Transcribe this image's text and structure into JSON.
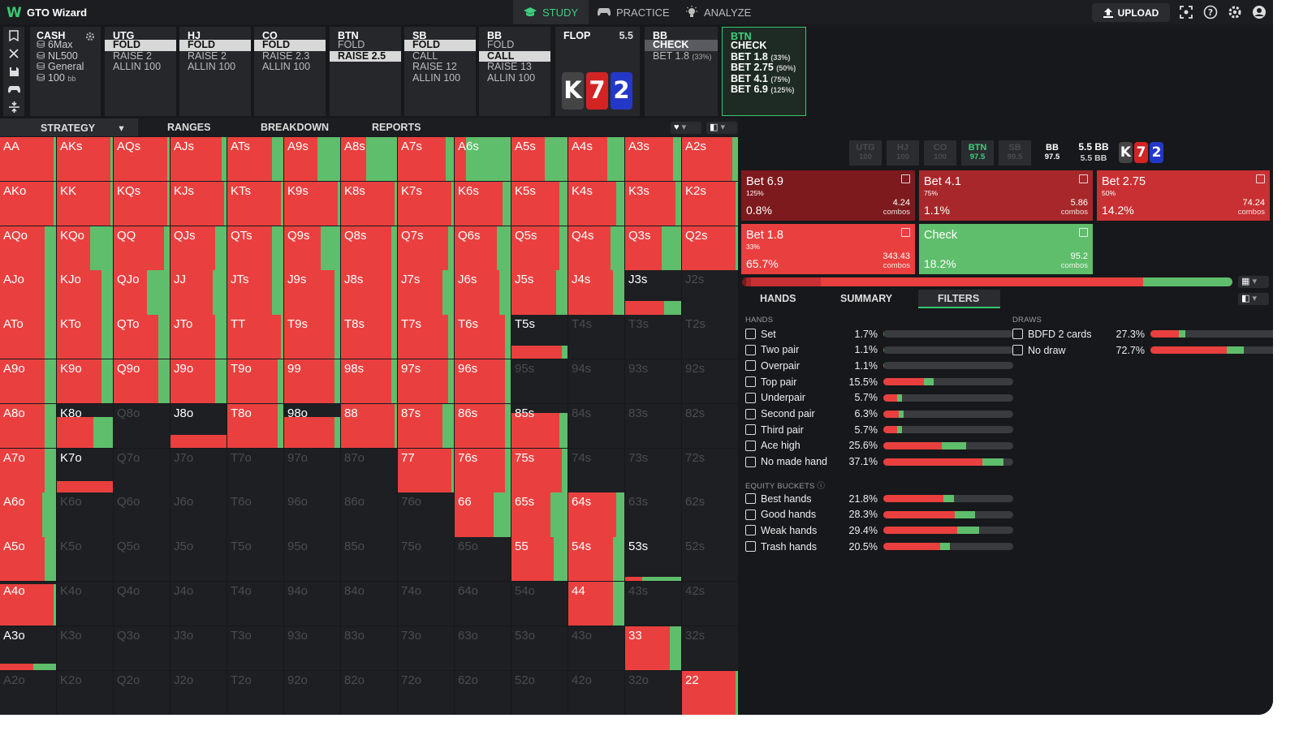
{
  "app": {
    "name": "GTO Wizard",
    "nav": [
      "STUDY",
      "PRACTICE",
      "ANALYZE"
    ],
    "upload": "UPLOAD"
  },
  "colors": {
    "raise": "#e9403f",
    "check": "#5fbe6c",
    "accent": "#39c66f",
    "bg": "#17181b"
  },
  "cash": {
    "title": "CASH",
    "items": [
      "6Max",
      "NL500",
      "General",
      "100"
    ],
    "unit": "bb"
  },
  "positions": [
    {
      "name": "UTG",
      "actions": [
        [
          "FOLD",
          "sel"
        ],
        [
          "RAISE 2",
          ""
        ],
        [
          "ALLIN 100",
          ""
        ]
      ]
    },
    {
      "name": "HJ",
      "actions": [
        [
          "FOLD",
          "sel"
        ],
        [
          "RAISE 2",
          ""
        ],
        [
          "ALLIN 100",
          ""
        ]
      ]
    },
    {
      "name": "CO",
      "actions": [
        [
          "FOLD",
          "sel"
        ],
        [
          "RAISE 2.3",
          ""
        ],
        [
          "ALLIN 100",
          ""
        ]
      ]
    },
    {
      "name": "BTN",
      "actions": [
        [
          "FOLD",
          ""
        ],
        [
          "RAISE 2.5",
          "sel"
        ]
      ]
    },
    {
      "name": "SB",
      "actions": [
        [
          "FOLD",
          "sel"
        ],
        [
          "CALL",
          ""
        ],
        [
          "RAISE 12",
          ""
        ],
        [
          "ALLIN 100",
          ""
        ]
      ]
    },
    {
      "name": "BB",
      "actions": [
        [
          "FOLD",
          ""
        ],
        [
          "CALL",
          "sel"
        ],
        [
          "RAISE 13",
          ""
        ],
        [
          "ALLIN 100",
          ""
        ]
      ]
    }
  ],
  "flop": {
    "title": "FLOP",
    "pot": "5.5",
    "cards": [
      {
        "rank": "K",
        "color": "#444"
      },
      {
        "rank": "7",
        "color": "#d32323"
      },
      {
        "rank": "2",
        "color": "#2438c8"
      }
    ]
  },
  "bb_node": {
    "name": "BB",
    "actions": [
      {
        "label": "CHECK",
        "pct": "",
        "sel": true
      },
      {
        "label": "BET 1.8",
        "pct": "(33%)",
        "sel": false
      }
    ]
  },
  "btn_node": {
    "name": "BTN",
    "actions": [
      {
        "label": "CHECK",
        "pct": ""
      },
      {
        "label": "BET 1.8",
        "pct": "(33%)"
      },
      {
        "label": "BET 2.75",
        "pct": "(50%)"
      },
      {
        "label": "BET 4.1",
        "pct": "(75%)"
      },
      {
        "label": "BET 6.9",
        "pct": "(125%)"
      }
    ]
  },
  "left_tabs": [
    "STRATEGY",
    "RANGES",
    "BREAKDOWN",
    "REPORTS"
  ],
  "players": [
    {
      "n": "UTG",
      "s": "100",
      "a": false
    },
    {
      "n": "HJ",
      "s": "100",
      "a": false
    },
    {
      "n": "CO",
      "s": "100",
      "a": false
    },
    {
      "n": "BTN",
      "s": "97.5",
      "a": true
    },
    {
      "n": "SB",
      "s": "99.5",
      "a": false
    },
    {
      "n": "BB",
      "s": "97.5",
      "a": "w"
    }
  ],
  "pot": {
    "top": "5.5 BB",
    "bottom": "5.5 BB"
  },
  "action_boxes": [
    {
      "name": "Bet 6.9",
      "size": "125%",
      "combos": "4.24",
      "pct": "0.8%",
      "color": "#7d1a1d"
    },
    {
      "name": "Bet 4.1",
      "size": "75%",
      "combos": "5.86",
      "pct": "1.1%",
      "color": "#a8272a"
    },
    {
      "name": "Bet 2.75",
      "size": "50%",
      "combos": "74.24",
      "pct": "14.2%",
      "color": "#c93033"
    },
    {
      "name": "Bet 1.8",
      "size": "33%",
      "combos": "343.43",
      "pct": "65.7%",
      "color": "#e9403f"
    },
    {
      "name": "Check",
      "size": "",
      "combos": "95.2",
      "pct": "18.2%",
      "color": "#5fbe6c"
    }
  ],
  "combos_label": "combos",
  "overall": [
    {
      "c": "#7d1a1d",
      "v": 0.8
    },
    {
      "c": "#a8272a",
      "v": 1.1
    },
    {
      "c": "#c93033",
      "v": 14.2
    },
    {
      "c": "#e9403f",
      "v": 65.7
    },
    {
      "c": "#5fbe6c",
      "v": 18.2
    }
  ],
  "right_tabs": [
    "HANDS",
    "SUMMARY",
    "FILTERS"
  ],
  "filters": {
    "hands_title": "HANDS",
    "hands": [
      {
        "name": "Set",
        "pct": "1.7%",
        "v": 1.7,
        "r": 0.1,
        "g": 0
      },
      {
        "name": "Two pair",
        "pct": "1.1%",
        "v": 1.1,
        "r": 0.1,
        "g": 0
      },
      {
        "name": "Overpair",
        "pct": "1.1%",
        "v": 1.1,
        "r": 0.1,
        "g": 0
      },
      {
        "name": "Top pair",
        "pct": "15.5%",
        "v": 15.5,
        "r": 0.8,
        "g": 0.2
      },
      {
        "name": "Underpair",
        "pct": "5.7%",
        "v": 5.7,
        "r": 0.75,
        "g": 0.25
      },
      {
        "name": "Second pair",
        "pct": "6.3%",
        "v": 6.3,
        "r": 0.75,
        "g": 0.25
      },
      {
        "name": "Third pair",
        "pct": "5.7%",
        "v": 5.7,
        "r": 0.75,
        "g": 0.25
      },
      {
        "name": "Ace high",
        "pct": "25.6%",
        "v": 25.6,
        "r": 0.7,
        "g": 0.3
      },
      {
        "name": "No made hand",
        "pct": "37.1%",
        "v": 37.1,
        "r": 0.82,
        "g": 0.18
      }
    ],
    "equity_title": "EQUITY BUCKETS",
    "equity": [
      {
        "name": "Best hands",
        "pct": "21.8%",
        "v": 21.8,
        "r": 0.85,
        "g": 0.15
      },
      {
        "name": "Good hands",
        "pct": "28.3%",
        "v": 28.3,
        "r": 0.78,
        "g": 0.22
      },
      {
        "name": "Weak hands",
        "pct": "29.4%",
        "v": 29.4,
        "r": 0.77,
        "g": 0.23
      },
      {
        "name": "Trash hands",
        "pct": "20.5%",
        "v": 20.5,
        "r": 0.85,
        "g": 0.15
      }
    ],
    "draws_title": "DRAWS",
    "draws": [
      {
        "name": "BDFD 2 cards",
        "pct": "27.3%",
        "v": 27.3,
        "r": 0.8,
        "g": 0.2
      },
      {
        "name": "No draw",
        "pct": "72.7%",
        "v": 72.7,
        "r": 0.82,
        "g": 0.18
      }
    ]
  },
  "grid": [
    [
      "AA:0.95:0.05",
      "AKs:0.95:0.05",
      "AQs:0.95:0.05",
      "AJs:0.92:0.08",
      "ATs:0.8:0.2",
      "A9s:0.6:0.4",
      "A8s:0.45:0.55",
      "A7s:0.85:0.15",
      "A6s:0.2:0.8",
      "A5s:0.6:0.4",
      "A4s:0.7:0.3",
      "A3s:0.85:0.15",
      "A2s:0.9:0.1"
    ],
    [
      "AKo:0.95:0.05",
      "KK:0.95:0.05",
      "KQs:0.95:0.05",
      "KJs:0.95:0.05",
      "KTs:0.95:0.05",
      "K9s:0.95:0.05",
      "K8s:0.95:0.05",
      "K7s:0.95:0.05",
      "K6s:0.85:0.15",
      "K5s:0.85:0.15",
      "K4s:0.85:0.15",
      "K3s:0.9:0.1",
      "K2s:0.95:0.05"
    ],
    [
      "AQo:0.8:0.2",
      "KQo:0.6:0.4",
      "QQ:0.9:0.1",
      "QJs:0.8:0.2",
      "QTs:0.8:0.2",
      "Q9s:0.65:0.35",
      "Q8s:0.9:0.1",
      "Q7s:0.9:0.1",
      "Q6s:0.75:0.25",
      "Q5s:0.85:0.15",
      "Q4s:0.75:0.25",
      "Q3s:0.65:0.35",
      "Q2s:0.95:0.05"
    ],
    [
      "AJo:0.8:0.2",
      "KJo:0.8:0.2",
      "QJo:0.6:0.4",
      "JJ:0.75:0.25",
      "JTs:0.8:0.2",
      "J9s:0.9:0.1",
      "J8s:0.9:0.1",
      "J7s:0.8:0.2",
      "J6s:0.8:0.2",
      "J5s:0.8:0.2",
      "J4s:0.8:0.2",
      "J3s:0.7:0.3:0.3",
      "J2s:0:0:0"
    ],
    [
      "ATo:0.8:0.2",
      "KTo:0.8:0.2",
      "QTo:0.8:0.2",
      "JTo:0.8:0.2",
      "TT:0.95:0.05",
      "T9s:0.9:0.1",
      "T8s:0.9:0.1",
      "T7s:0.9:0.1",
      "T6s:0.9:0.1",
      "T5s:0.9:0.1:0.3",
      "T4s:0:0:0",
      "T3s:0:0:0",
      "T2s:0:0:0"
    ],
    [
      "A9o:0.8:0.2",
      "K9o:0.8:0.2",
      "Q9o:0.8:0.2",
      "J9o:0.8:0.2",
      "T9o:0.9:0.1",
      "99:0.9:0.1",
      "98s:0.9:0.1",
      "97s:0.9:0.1",
      "96s:0.9:0.1",
      "95s:0:0:0",
      "94s:0:0:0",
      "93s:0:0:0",
      "92s:0:0:0"
    ],
    [
      "A8o:0.8:0.2",
      "K8o:0.65:0.35:0.7",
      "Q8o:0:0:0",
      "J8o:1:0:0.3",
      "T8o:0.9:0.1",
      "98o:0.9:0.1:0.7",
      "88:0.95:0.05",
      "87s:0.8:0.2",
      "86s:0.9:0.1",
      "85s:0.85:0.15:0.8",
      "84s:0:0:0",
      "83s:0:0:0",
      "82s:0:0:0"
    ],
    [
      "A7o:0.8:0.2",
      "K7o:1:0:0.25",
      "Q7o:0:0:0",
      "J7o:0:0:0",
      "T7o:0:0:0",
      "97o:0:0:0",
      "87o:0:0:0",
      "77:0.95:0.05",
      "76s:0.9:0.1",
      "75s:0.9:0.1",
      "74s:0:0:0",
      "73s:0:0:0",
      "72s:0:0:0"
    ],
    [
      "A6o:0.75:0.25",
      "K6o:0:0:0",
      "Q6o:0:0:0",
      "J6o:0:0:0",
      "T6o:0:0:0",
      "96o:0:0:0",
      "86o:0:0:0",
      "76o:0:0:0",
      "66:0.7:0.3",
      "65s:0.7:0.3",
      "64s:0.85:0.15",
      "63s:0:0:0",
      "62s:0:0:0"
    ],
    [
      "A5o:0.8:0.2",
      "K5o:0:0:0",
      "Q5o:0:0:0",
      "J5o:0:0:0",
      "T5o:0:0:0",
      "95o:0:0:0",
      "85o:0:0:0",
      "75o:0:0:0",
      "65o:0:0:0",
      "55:0.75:0.25",
      "54s:0.8:0.2",
      "53s:0.3:0.7:0.1",
      "52s:0:0:0"
    ],
    [
      "A4o:0.95:0.05:0.95",
      "K4o:0:0:0",
      "Q4o:0:0:0",
      "J4o:0:0:0",
      "T4o:0:0:0",
      "94o:0:0:0",
      "84o:0:0:0",
      "74o:0:0:0",
      "64o:0:0:0",
      "54o:0:0:0",
      "44:0.8:0.2",
      "43s:0:0:0",
      "42s:0:0:0"
    ],
    [
      "A3o:0.6:0.4:0.15",
      "K3o:0:0:0",
      "Q3o:0:0:0",
      "J3o:0:0:0",
      "T3o:0:0:0",
      "93o:0:0:0",
      "83o:0:0:0",
      "73o:0:0:0",
      "63o:0:0:0",
      "53o:0:0:0",
      "43o:0:0:0",
      "33:0.8:0.2",
      "32s:0:0:0"
    ],
    [
      "A2o:0:0:0",
      "K2o:0:0:0",
      "Q2o:0:0:0",
      "J2o:0:0:0",
      "T2o:0:0:0",
      "92o:0:0:0",
      "82o:0:0:0",
      "72o:0:0:0",
      "62o:0:0:0",
      "52o:0:0:0",
      "42o:0:0:0",
      "32o:0:0:0",
      "22:0.95:0.05"
    ]
  ]
}
